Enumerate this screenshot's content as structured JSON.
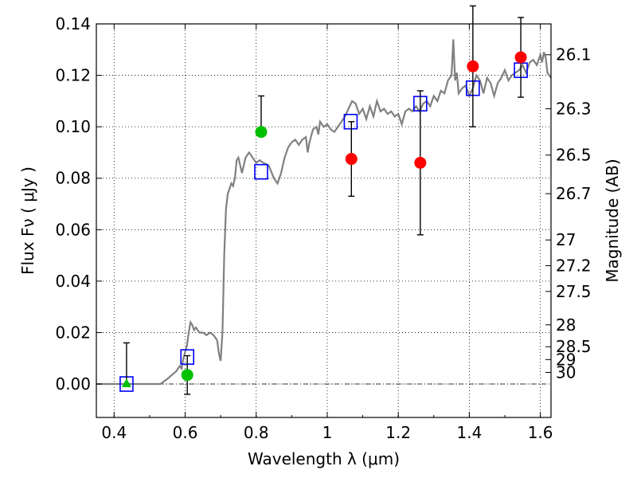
{
  "chart_data": {
    "type": "scatter",
    "title": "",
    "xlabel": "Wavelength  λ (μm)",
    "ylabel": "Flux  Fν  ( μJy )",
    "ylabel_right": "Magnitude (AB)",
    "xlim": [
      0.35,
      1.63
    ],
    "ylim": [
      -0.013,
      0.14
    ],
    "grid": true,
    "x_ticks": [
      "0.4",
      "0.6",
      "0.8",
      "1",
      "1.2",
      "1.4",
      "1.6"
    ],
    "x_tick_values": [
      0.4,
      0.6,
      0.8,
      1.0,
      1.2,
      1.4,
      1.6
    ],
    "y_ticks": [
      "0.00",
      "0.02",
      "0.04",
      "0.06",
      "0.08",
      "0.10",
      "0.12",
      "0.14"
    ],
    "y_tick_values": [
      0.0,
      0.02,
      0.04,
      0.06,
      0.08,
      0.1,
      0.12,
      0.14
    ],
    "right_ticks": [
      {
        "label": "26.1",
        "flux": 0.128
      },
      {
        "label": "26.3",
        "flux": 0.107
      },
      {
        "label": "26.5",
        "flux": 0.089
      },
      {
        "label": "26.7",
        "flux": 0.074
      },
      {
        "label": "27",
        "flux": 0.056
      },
      {
        "label": "27.2",
        "flux": 0.046
      },
      {
        "label": "27.5",
        "flux": 0.036
      },
      {
        "label": "28",
        "flux": 0.023
      },
      {
        "label": "28.5",
        "flux": 0.0145
      },
      {
        "label": "29",
        "flux": 0.0095
      },
      {
        "label": "30",
        "flux": 0.0045
      }
    ],
    "series": [
      {
        "kind": "spectrum",
        "color": "#808080",
        "points": [
          [
            0.35,
            0.0
          ],
          [
            0.53,
            0.0
          ],
          [
            0.55,
            0.002
          ],
          [
            0.575,
            0.005
          ],
          [
            0.585,
            0.007
          ],
          [
            0.59,
            0.006
          ],
          [
            0.595,
            0.01
          ],
          [
            0.605,
            0.015
          ],
          [
            0.61,
            0.02
          ],
          [
            0.615,
            0.024
          ],
          [
            0.62,
            0.023
          ],
          [
            0.625,
            0.021
          ],
          [
            0.63,
            0.022
          ],
          [
            0.64,
            0.02
          ],
          [
            0.65,
            0.02
          ],
          [
            0.66,
            0.019
          ],
          [
            0.67,
            0.02
          ],
          [
            0.68,
            0.019
          ],
          [
            0.69,
            0.017
          ],
          [
            0.695,
            0.012
          ],
          [
            0.7,
            0.009
          ],
          [
            0.705,
            0.02
          ],
          [
            0.71,
            0.05
          ],
          [
            0.715,
            0.068
          ],
          [
            0.72,
            0.074
          ],
          [
            0.73,
            0.078
          ],
          [
            0.735,
            0.077
          ],
          [
            0.74,
            0.08
          ],
          [
            0.745,
            0.087
          ],
          [
            0.75,
            0.088
          ],
          [
            0.76,
            0.082
          ],
          [
            0.77,
            0.088
          ],
          [
            0.78,
            0.09
          ],
          [
            0.79,
            0.088
          ],
          [
            0.8,
            0.086
          ],
          [
            0.81,
            0.087
          ],
          [
            0.82,
            0.086
          ],
          [
            0.835,
            0.085
          ],
          [
            0.85,
            0.08
          ],
          [
            0.86,
            0.078
          ],
          [
            0.87,
            0.082
          ],
          [
            0.88,
            0.088
          ],
          [
            0.89,
            0.092
          ],
          [
            0.9,
            0.094
          ],
          [
            0.91,
            0.095
          ],
          [
            0.92,
            0.093
          ],
          [
            0.93,
            0.095
          ],
          [
            0.94,
            0.096
          ],
          [
            0.945,
            0.09
          ],
          [
            0.95,
            0.094
          ],
          [
            0.96,
            0.099
          ],
          [
            0.97,
            0.1
          ],
          [
            0.975,
            0.097
          ],
          [
            0.98,
            0.102
          ],
          [
            0.99,
            0.1
          ],
          [
            1.0,
            0.101
          ],
          [
            1.01,
            0.099
          ],
          [
            1.02,
            0.098
          ],
          [
            1.03,
            0.1
          ],
          [
            1.04,
            0.102
          ],
          [
            1.05,
            0.104
          ],
          [
            1.06,
            0.107
          ],
          [
            1.07,
            0.11
          ],
          [
            1.08,
            0.109
          ],
          [
            1.09,
            0.105
          ],
          [
            1.1,
            0.107
          ],
          [
            1.11,
            0.103
          ],
          [
            1.12,
            0.108
          ],
          [
            1.13,
            0.104
          ],
          [
            1.14,
            0.11
          ],
          [
            1.15,
            0.106
          ],
          [
            1.16,
            0.107
          ],
          [
            1.17,
            0.105
          ],
          [
            1.18,
            0.106
          ],
          [
            1.19,
            0.104
          ],
          [
            1.2,
            0.105
          ],
          [
            1.21,
            0.101
          ],
          [
            1.22,
            0.106
          ],
          [
            1.23,
            0.107
          ],
          [
            1.24,
            0.106
          ],
          [
            1.25,
            0.108
          ],
          [
            1.26,
            0.106
          ],
          [
            1.27,
            0.109
          ],
          [
            1.28,
            0.11
          ],
          [
            1.29,
            0.108
          ],
          [
            1.3,
            0.112
          ],
          [
            1.31,
            0.11
          ],
          [
            1.32,
            0.114
          ],
          [
            1.33,
            0.113
          ],
          [
            1.34,
            0.118
          ],
          [
            1.35,
            0.12
          ],
          [
            1.355,
            0.134
          ],
          [
            1.36,
            0.118
          ],
          [
            1.365,
            0.121
          ],
          [
            1.37,
            0.113
          ],
          [
            1.38,
            0.115
          ],
          [
            1.39,
            0.116
          ],
          [
            1.4,
            0.112
          ],
          [
            1.41,
            0.115
          ],
          [
            1.42,
            0.12
          ],
          [
            1.43,
            0.118
          ],
          [
            1.44,
            0.113
          ],
          [
            1.45,
            0.119
          ],
          [
            1.46,
            0.117
          ],
          [
            1.47,
            0.112
          ],
          [
            1.48,
            0.117
          ],
          [
            1.49,
            0.119
          ],
          [
            1.5,
            0.122
          ],
          [
            1.51,
            0.118
          ],
          [
            1.52,
            0.12
          ],
          [
            1.53,
            0.121
          ],
          [
            1.54,
            0.122
          ],
          [
            1.55,
            0.124
          ],
          [
            1.56,
            0.121
          ],
          [
            1.57,
            0.125
          ],
          [
            1.58,
            0.126
          ],
          [
            1.59,
            0.124
          ],
          [
            1.6,
            0.128
          ],
          [
            1.605,
            0.125
          ],
          [
            1.61,
            0.129
          ],
          [
            1.615,
            0.127
          ],
          [
            1.62,
            0.121
          ],
          [
            1.63,
            0.119
          ]
        ]
      },
      {
        "kind": "model_photometry",
        "marker": "square",
        "color": "#0000ff",
        "points": [
          [
            0.435,
            0.0
          ],
          [
            0.606,
            0.0105
          ],
          [
            0.814,
            0.0825
          ],
          [
            1.066,
            0.102
          ],
          [
            1.262,
            0.109
          ],
          [
            1.41,
            0.115
          ],
          [
            1.545,
            0.122
          ]
        ]
      },
      {
        "kind": "observed_red",
        "marker": "circle",
        "color": "#ff0000",
        "points": [
          {
            "x": 1.068,
            "y": 0.0875,
            "err_low": 0.0145,
            "err_high": 0.0145
          },
          {
            "x": 1.262,
            "y": 0.086,
            "err_low": 0.028,
            "err_high": 0.028
          },
          {
            "x": 1.41,
            "y": 0.1235,
            "err_low": 0.0235,
            "err_high": 0.0235
          },
          {
            "x": 1.545,
            "y": 0.127,
            "err_low": 0.0155,
            "err_high": 0.0155
          }
        ]
      },
      {
        "kind": "observed_green",
        "marker": "circle",
        "color": "#00c000",
        "points": [
          {
            "x": 0.606,
            "y": 0.0035,
            "err_low": 0.0075,
            "err_high": 0.0075
          },
          {
            "x": 0.814,
            "y": 0.098,
            "err_low": 0.0,
            "err_high": 0.014
          }
        ]
      },
      {
        "kind": "upper_limit",
        "marker": "triangle",
        "color": "#00c000",
        "points": [
          {
            "x": 0.435,
            "y": 0.0,
            "err_low": 0.0,
            "err_high": 0.016
          }
        ]
      }
    ]
  }
}
